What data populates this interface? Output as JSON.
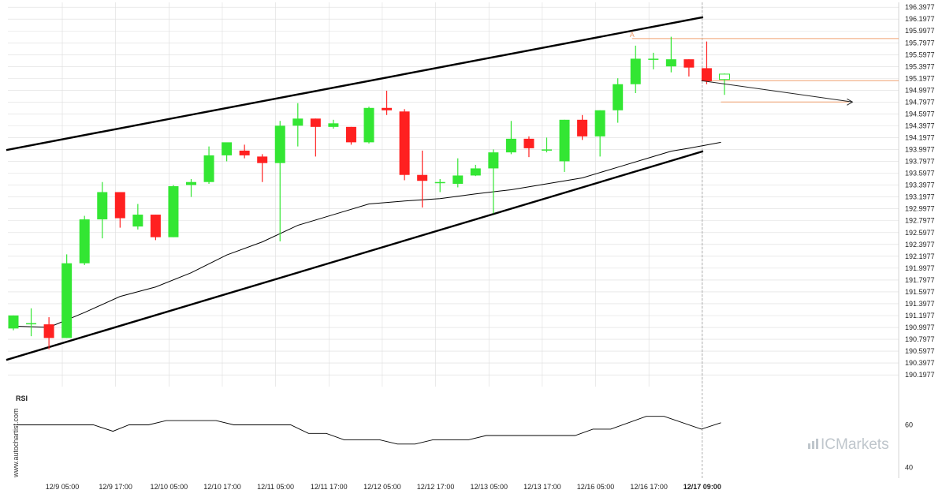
{
  "chart_data": [
    {
      "type": "candlestick",
      "title": "",
      "ylim": [
        190.0,
        196.48
      ],
      "y_ticks": [
        "196.3977",
        "196.1977",
        "195.9977",
        "195.7977",
        "195.5977",
        "195.3977",
        "195.1977",
        "194.9977",
        "194.7977",
        "194.5977",
        "194.3977",
        "194.1977",
        "193.9977",
        "193.7977",
        "193.5977",
        "193.3977",
        "193.1977",
        "192.9977",
        "192.7977",
        "192.5977",
        "192.3977",
        "192.1977",
        "191.9977",
        "191.7977",
        "191.5977",
        "191.3977",
        "191.1977",
        "190.9977",
        "190.7977",
        "190.5977",
        "190.3977",
        "190.1977"
      ],
      "x_ticks": [
        {
          "label": "12/9 05:00",
          "bar": 2.75
        },
        {
          "label": "12/9 17:00",
          "bar": 5.75
        },
        {
          "label": "12/10 05:00",
          "bar": 8.75
        },
        {
          "label": "12/10 17:00",
          "bar": 11.75
        },
        {
          "label": "12/11 05:00",
          "bar": 14.75
        },
        {
          "label": "12/11 17:00",
          "bar": 17.75
        },
        {
          "label": "12/12 05:00",
          "bar": 20.75
        },
        {
          "label": "12/12 17:00",
          "bar": 23.75
        },
        {
          "label": "12/13 05:00",
          "bar": 26.75
        },
        {
          "label": "12/13 17:00",
          "bar": 29.75
        },
        {
          "label": "12/16 05:00",
          "bar": 32.75
        },
        {
          "label": "12/16 17:00",
          "bar": 35.75
        },
        {
          "label": "12/17 09:00",
          "bar": 38.75,
          "bold": true
        }
      ],
      "candles": [
        {
          "o": 190.98,
          "h": 191.2,
          "l": 190.95,
          "c": 191.2
        },
        {
          "o": 191.07,
          "h": 191.32,
          "l": 190.85,
          "c": 191.07
        },
        {
          "o": 191.05,
          "h": 191.17,
          "l": 190.63,
          "c": 190.82
        },
        {
          "o": 190.82,
          "h": 192.23,
          "l": 190.82,
          "c": 192.08
        },
        {
          "o": 192.08,
          "h": 192.88,
          "l": 192.05,
          "c": 192.82
        },
        {
          "o": 192.82,
          "h": 193.45,
          "l": 192.5,
          "c": 193.28
        },
        {
          "o": 193.28,
          "h": 193.28,
          "l": 192.68,
          "c": 192.84
        },
        {
          "o": 192.7,
          "h": 193.08,
          "l": 192.65,
          "c": 192.9
        },
        {
          "o": 192.9,
          "h": 192.9,
          "l": 192.47,
          "c": 192.52
        },
        {
          "o": 192.52,
          "h": 193.4,
          "l": 192.52,
          "c": 193.38
        },
        {
          "o": 193.4,
          "h": 193.5,
          "l": 193.2,
          "c": 193.45
        },
        {
          "o": 193.45,
          "h": 194.05,
          "l": 193.42,
          "c": 193.9
        },
        {
          "o": 193.9,
          "h": 194.1,
          "l": 193.8,
          "c": 194.12
        },
        {
          "o": 193.98,
          "h": 194.08,
          "l": 193.85,
          "c": 193.9
        },
        {
          "o": 193.88,
          "h": 193.92,
          "l": 193.45,
          "c": 193.77
        },
        {
          "o": 193.77,
          "h": 194.48,
          "l": 192.45,
          "c": 194.4
        },
        {
          "o": 194.4,
          "h": 194.78,
          "l": 194.05,
          "c": 194.52
        },
        {
          "o": 194.52,
          "h": 194.52,
          "l": 193.88,
          "c": 194.38
        },
        {
          "o": 194.38,
          "h": 194.5,
          "l": 194.35,
          "c": 194.44
        },
        {
          "o": 194.38,
          "h": 194.38,
          "l": 194.08,
          "c": 194.12
        },
        {
          "o": 194.12,
          "h": 194.72,
          "l": 194.1,
          "c": 194.7
        },
        {
          "o": 194.7,
          "h": 194.99,
          "l": 194.58,
          "c": 194.66
        },
        {
          "o": 194.64,
          "h": 194.68,
          "l": 193.48,
          "c": 193.57
        },
        {
          "o": 193.57,
          "h": 193.98,
          "l": 193.02,
          "c": 193.47
        },
        {
          "o": 193.43,
          "h": 193.5,
          "l": 193.28,
          "c": 193.45
        },
        {
          "o": 193.42,
          "h": 193.85,
          "l": 193.36,
          "c": 193.56
        },
        {
          "o": 193.56,
          "h": 193.74,
          "l": 193.55,
          "c": 193.68
        },
        {
          "o": 193.68,
          "h": 194.0,
          "l": 192.92,
          "c": 193.95
        },
        {
          "o": 193.95,
          "h": 194.48,
          "l": 193.92,
          "c": 194.18
        },
        {
          "o": 194.18,
          "h": 194.22,
          "l": 193.87,
          "c": 194.02
        },
        {
          "o": 194.0,
          "h": 194.2,
          "l": 193.95,
          "c": 194.0
        },
        {
          "o": 193.8,
          "h": 194.5,
          "l": 193.62,
          "c": 194.5
        },
        {
          "o": 194.5,
          "h": 194.58,
          "l": 194.16,
          "c": 194.22
        },
        {
          "o": 194.22,
          "h": 194.66,
          "l": 193.88,
          "c": 194.66
        },
        {
          "o": 194.66,
          "h": 195.2,
          "l": 194.45,
          "c": 195.1
        },
        {
          "o": 195.1,
          "h": 195.75,
          "l": 194.95,
          "c": 195.53
        },
        {
          "o": 195.53,
          "h": 195.63,
          "l": 195.35,
          "c": 195.53
        },
        {
          "o": 195.4,
          "h": 195.9,
          "l": 195.3,
          "c": 195.52
        },
        {
          "o": 195.52,
          "h": 195.52,
          "l": 195.23,
          "c": 195.38
        },
        {
          "o": 195.37,
          "h": 195.82,
          "l": 195.1,
          "c": 195.15
        },
        {
          "o": 195.18,
          "h": 195.28,
          "l": 194.92,
          "c": 195.27,
          "hollow": true
        }
      ],
      "moving_average": [
        {
          "bar": 0,
          "v": 191.02
        },
        {
          "bar": 2,
          "v": 191.0
        },
        {
          "bar": 4,
          "v": 191.25
        },
        {
          "bar": 6,
          "v": 191.52
        },
        {
          "bar": 8,
          "v": 191.68
        },
        {
          "bar": 10,
          "v": 191.92
        },
        {
          "bar": 12,
          "v": 192.22
        },
        {
          "bar": 14,
          "v": 192.44
        },
        {
          "bar": 16,
          "v": 192.72
        },
        {
          "bar": 18,
          "v": 192.9
        },
        {
          "bar": 20,
          "v": 193.08
        },
        {
          "bar": 22,
          "v": 193.13
        },
        {
          "bar": 24,
          "v": 193.17
        },
        {
          "bar": 26,
          "v": 193.25
        },
        {
          "bar": 28,
          "v": 193.32
        },
        {
          "bar": 30,
          "v": 193.42
        },
        {
          "bar": 32,
          "v": 193.52
        },
        {
          "bar": 34,
          "v": 193.7
        },
        {
          "bar": 36,
          "v": 193.88
        },
        {
          "bar": 37,
          "v": 193.97
        },
        {
          "bar": 38,
          "v": 194.02
        },
        {
          "bar": 39.8,
          "v": 194.12
        }
      ],
      "channel_upper": [
        {
          "bar": -0.4,
          "v": 193.99
        },
        {
          "bar": 38.8,
          "v": 196.23
        }
      ],
      "channel_lower": [
        {
          "bar": -0.4,
          "v": 190.45
        },
        {
          "bar": 38.8,
          "v": 193.97
        }
      ],
      "projection": [
        {
          "bar": 38.7,
          "v": 195.16
        },
        {
          "bar": 47.2,
          "v": 194.8
        }
      ],
      "levels": [
        {
          "name": "A",
          "from_bar": 34.8,
          "to_bar": 50.0,
          "v": 195.87
        },
        {
          "from_bar": 38.8,
          "to_bar": 50.0,
          "v": 195.16
        },
        {
          "from_bar": 39.8,
          "to_bar": 47.0,
          "v": 194.8
        }
      ],
      "point_label": {
        "text": "A",
        "bar": 34.8,
        "v": 195.88
      },
      "current_bar": 38.75
    },
    {
      "type": "line",
      "title": "RSI",
      "ylim": [
        35,
        75
      ],
      "y_ticks": [
        "60",
        "40"
      ],
      "points": [
        {
          "bar": 0,
          "v": 60
        },
        {
          "bar": 4.5,
          "v": 60
        },
        {
          "bar": 5.6,
          "v": 57
        },
        {
          "bar": 6.5,
          "v": 60
        },
        {
          "bar": 7.6,
          "v": 60
        },
        {
          "bar": 8.6,
          "v": 62
        },
        {
          "bar": 11.4,
          "v": 62
        },
        {
          "bar": 12.4,
          "v": 60
        },
        {
          "bar": 15.6,
          "v": 60
        },
        {
          "bar": 16.6,
          "v": 56
        },
        {
          "bar": 17.6,
          "v": 56
        },
        {
          "bar": 18.6,
          "v": 53
        },
        {
          "bar": 20.6,
          "v": 53
        },
        {
          "bar": 21.6,
          "v": 51
        },
        {
          "bar": 22.6,
          "v": 51
        },
        {
          "bar": 23.6,
          "v": 53
        },
        {
          "bar": 25.6,
          "v": 53
        },
        {
          "bar": 26.6,
          "v": 55
        },
        {
          "bar": 31.6,
          "v": 55
        },
        {
          "bar": 32.6,
          "v": 58
        },
        {
          "bar": 33.6,
          "v": 58
        },
        {
          "bar": 35.6,
          "v": 64
        },
        {
          "bar": 36.6,
          "v": 64
        },
        {
          "bar": 38.7,
          "v": 58
        },
        {
          "bar": 39.8,
          "v": 61
        }
      ]
    }
  ],
  "watermark": "www.autochartist.com",
  "brand": "ICMarkets",
  "colors": {
    "up": "#33e633",
    "down": "#ff2020",
    "level": "#f0a070",
    "channel": "#000000",
    "grid": "#dddddd"
  }
}
